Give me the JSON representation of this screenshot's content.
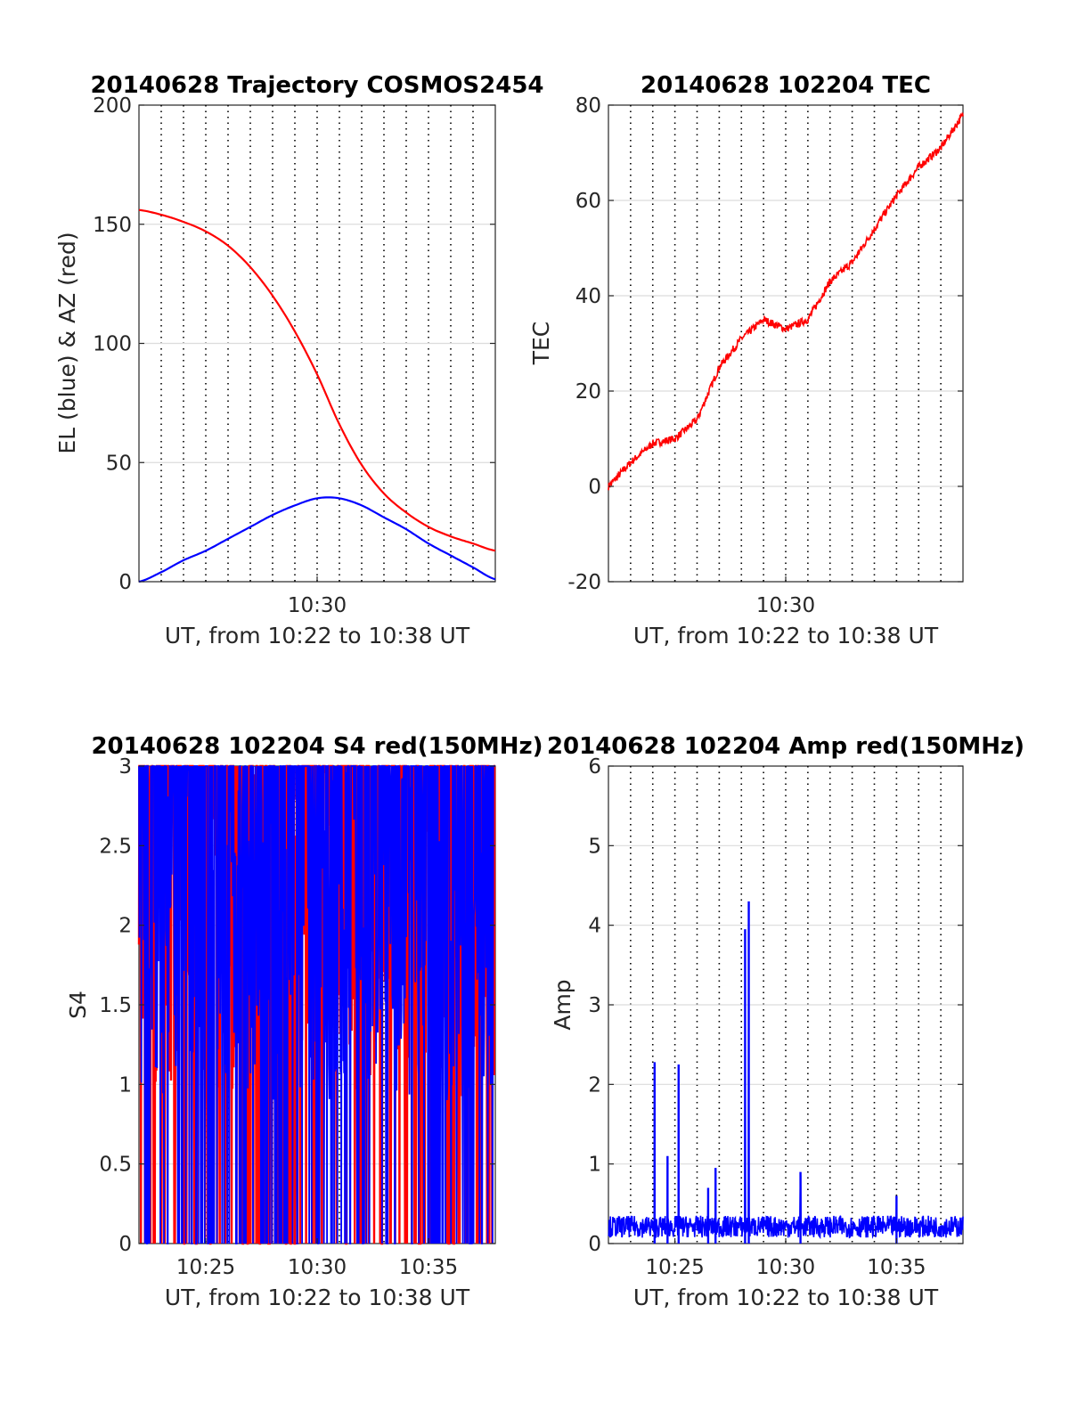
{
  "chart_data": [
    {
      "type": "line",
      "title": "20140628 Trajectory COSMOS2454",
      "xlabel": "UT, from 10:22 to 10:38 UT",
      "ylabel": "EL (blue) & AZ (red)",
      "xlim": [
        "10:22",
        "10:38"
      ],
      "ylim": [
        0,
        200
      ],
      "x_ticks": [
        "10:30"
      ],
      "y_ticks": [
        "0",
        "50",
        "100",
        "150",
        "200"
      ],
      "grid": "dotted vertical every 1 min, light horizontal",
      "colors": {
        "AZ": "#ff0000",
        "EL": "#0000ff"
      },
      "series": [
        {
          "color": "#ff0000",
          "x": [
            "10:22",
            "10:23",
            "10:24",
            "10:25",
            "10:26",
            "10:27",
            "10:28",
            "10:29",
            "10:30",
            "10:31",
            "10:32",
            "10:33",
            "10:34",
            "10:35",
            "10:36",
            "10:37",
            "10:38"
          ],
          "values": [
            156,
            154,
            151,
            147,
            141,
            132,
            120,
            105,
            87,
            66,
            49,
            37,
            29,
            23,
            19,
            16,
            13
          ]
        },
        {
          "color": "#0000ff",
          "x": [
            "10:22",
            "10:23",
            "10:24",
            "10:25",
            "10:26",
            "10:27",
            "10:28",
            "10:29",
            "10:30",
            "10:31",
            "10:32",
            "10:33",
            "10:34",
            "10:35",
            "10:36",
            "10:37",
            "10:38"
          ],
          "values": [
            0,
            4,
            9,
            13,
            18,
            23,
            28,
            32,
            35,
            35,
            32,
            27,
            22,
            16,
            11,
            6,
            1
          ]
        }
      ]
    },
    {
      "type": "line",
      "title": "20140628 102204 TEC",
      "xlabel": "UT, from 10:22 to 10:38 UT",
      "ylabel": "TEC",
      "xlim": [
        "10:22",
        "10:38"
      ],
      "ylim": [
        -20,
        80
      ],
      "x_ticks": [
        "10:30"
      ],
      "y_ticks": [
        "-20",
        "0",
        "20",
        "40",
        "60",
        "80"
      ],
      "colors": {
        "line": "#ff0000"
      },
      "series": [
        {
          "color": "#ff0000",
          "x": [
            "10:22",
            "10:23",
            "10:24",
            "10:25",
            "10:26",
            "10:27",
            "10:28",
            "10:29",
            "10:30",
            "10:31",
            "10:32",
            "10:33",
            "10:34",
            "10:35",
            "10:36",
            "10:37",
            "10:38"
          ],
          "values": [
            0,
            5,
            9,
            10,
            14,
            25,
            31,
            35,
            33,
            35,
            43,
            47,
            54,
            61,
            67,
            71,
            78
          ]
        }
      ]
    },
    {
      "type": "line",
      "title": "20140628 102204 S4 red(150MHz)",
      "xlabel": "UT, from 10:22 to 10:38 UT",
      "ylabel": "S4",
      "xlim": [
        "10:22",
        "10:38"
      ],
      "ylim": [
        0,
        3
      ],
      "x_ticks": [
        "10:25",
        "10:30",
        "10:35"
      ],
      "y_ticks": [
        "0",
        "0.5",
        "1",
        "1.5",
        "2",
        "2.5",
        "3"
      ],
      "colors": {
        "red": "#ff0000",
        "blue": "#0000ff"
      },
      "series": [
        {
          "color": "#ff0000",
          "envelope_min": 0,
          "envelope_max": 3
        },
        {
          "color": "#0000ff",
          "envelope_min": 0,
          "envelope_max": 3
        }
      ]
    },
    {
      "type": "line",
      "title": "20140628 102204 Amp red(150MHz)",
      "xlabel": "UT, from 10:22 to 10:38 UT",
      "ylabel": "Amp",
      "xlim": [
        "10:22",
        "10:38"
      ],
      "ylim": [
        0,
        6
      ],
      "x_ticks": [
        "10:25",
        "10:30",
        "10:35"
      ],
      "y_ticks": [
        "0",
        "1",
        "2",
        "3",
        "4",
        "5",
        "6"
      ],
      "colors": {
        "line": "#0000ff"
      },
      "series": [
        {
          "color": "#0000ff",
          "peaks": [
            {
              "x": "10:24:05",
              "value": 2.28
            },
            {
              "x": "10:24:40",
              "value": 1.1
            },
            {
              "x": "10:25:10",
              "value": 2.25
            },
            {
              "x": "10:26:30",
              "value": 0.7
            },
            {
              "x": "10:26:50",
              "value": 0.95
            },
            {
              "x": "10:28:10",
              "value": 3.95
            },
            {
              "x": "10:28:20",
              "value": 4.3
            },
            {
              "x": "10:30:40",
              "value": 0.9
            },
            {
              "x": "10:35:00",
              "value": 0.6
            }
          ],
          "baseline": 0.25
        }
      ]
    }
  ]
}
